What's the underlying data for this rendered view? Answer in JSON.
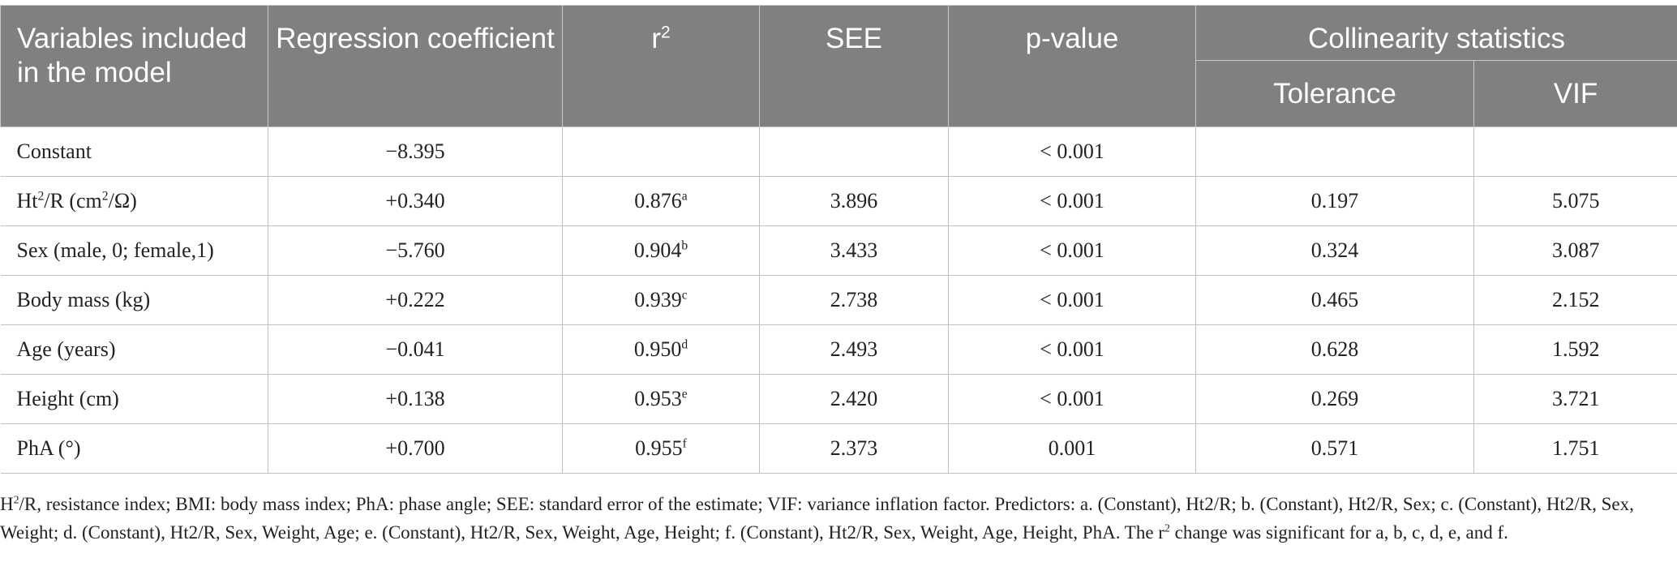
{
  "table": {
    "headers": {
      "variables": "Variables included in the model",
      "coefficient": "Regression coefficient",
      "r2_base": "r",
      "r2_sup": "2",
      "see": "SEE",
      "pvalue": "p-value",
      "collinearity": "Collinearity statistics",
      "tolerance": "Tolerance",
      "vif": "VIF"
    },
    "rows": [
      {
        "var": "Constant",
        "var_parts": {
          "a": "Constant",
          "sup1": "",
          "b": "",
          "sup2": "",
          "c": ""
        },
        "coef": "−8.395",
        "r2": "",
        "r2_sup": "",
        "see": "",
        "p": "< 0.001",
        "tol": "",
        "vif": ""
      },
      {
        "var_parts": {
          "a": "Ht",
          "sup1": "2",
          "b": "/R (cm",
          "sup2": "2",
          "c": "/Ω)"
        },
        "coef": "+0.340",
        "r2": "0.876",
        "r2_sup": "a",
        "see": "3.896",
        "p": "< 0.001",
        "tol": "0.197",
        "vif": "5.075"
      },
      {
        "var_parts": {
          "a": "Sex (male, 0; female,1)",
          "sup1": "",
          "b": "",
          "sup2": "",
          "c": ""
        },
        "coef": "−5.760",
        "r2": "0.904",
        "r2_sup": "b",
        "see": "3.433",
        "p": "< 0.001",
        "tol": "0.324",
        "vif": "3.087"
      },
      {
        "var_parts": {
          "a": "Body mass (kg)",
          "sup1": "",
          "b": "",
          "sup2": "",
          "c": ""
        },
        "coef": "+0.222",
        "r2": "0.939",
        "r2_sup": "c",
        "see": "2.738",
        "p": "< 0.001",
        "tol": "0.465",
        "vif": "2.152"
      },
      {
        "var_parts": {
          "a": "Age (years)",
          "sup1": "",
          "b": "",
          "sup2": "",
          "c": ""
        },
        "coef": "−0.041",
        "r2": "0.950",
        "r2_sup": "d",
        "see": "2.493",
        "p": "< 0.001",
        "tol": "0.628",
        "vif": "1.592"
      },
      {
        "var_parts": {
          "a": "Height (cm)",
          "sup1": "",
          "b": "",
          "sup2": "",
          "c": ""
        },
        "coef": "+0.138",
        "r2": "0.953",
        "r2_sup": "e",
        "see": "2.420",
        "p": "< 0.001",
        "tol": "0.269",
        "vif": "3.721"
      },
      {
        "var_parts": {
          "a": "PhA (°)",
          "sup1": "",
          "b": "",
          "sup2": "",
          "c": ""
        },
        "coef": "+0.700",
        "r2": "0.955",
        "r2_sup": "f",
        "see": "2.373",
        "p": "0.001",
        "tol": "0.571",
        "vif": "1.751"
      }
    ]
  },
  "footnote": {
    "p1": "H",
    "sup1": "2",
    "p2": "/R, resistance index; BMI: body mass index; PhA: phase angle; SEE: standard error of the estimate; VIF: variance inflation factor. Predictors: a. (Constant), Ht2/R; b. (Constant), Ht2/R, Sex; c. (Constant), Ht2/R, Sex, Weight; d. (Constant), Ht2/R, Sex, Weight, Age; e. (Constant), Ht2/R, Sex, Weight, Age, Height; f. (Constant), Ht2/R, Sex, Weight, Age, Height, PhA. The r",
    "sup2": "2",
    "p3": " change was significant for a, b, c, d, e, and f."
  },
  "colors": {
    "header_bg": "#808080",
    "header_text": "#ffffff",
    "border": "#c0c0c0"
  }
}
